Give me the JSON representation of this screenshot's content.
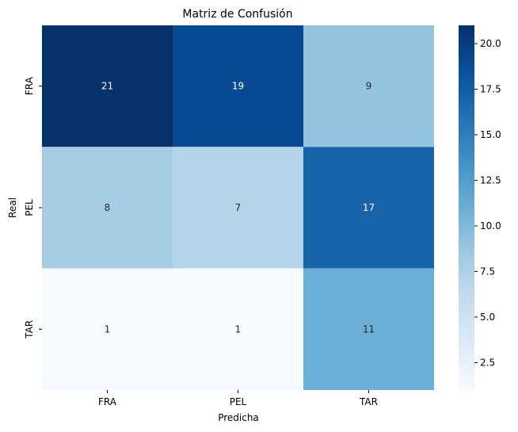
{
  "chart_data": {
    "type": "heatmap",
    "title": "Matriz de Confusión",
    "xlabel": "Predicha",
    "ylabel": "Real",
    "x_categories": [
      "FRA",
      "PEL",
      "TAR"
    ],
    "y_categories": [
      "FRA",
      "PEL",
      "TAR"
    ],
    "values": [
      [
        21,
        19,
        9
      ],
      [
        8,
        7,
        17
      ],
      [
        1,
        1,
        11
      ]
    ],
    "colormap": "Blues",
    "vmin": 1,
    "vmax": 21,
    "colorbar": {
      "ticks": [
        2.5,
        5.0,
        7.5,
        10.0,
        12.5,
        15.0,
        17.5,
        20.0
      ],
      "tick_labels": [
        "2.5",
        "5.0",
        "7.5",
        "10.0",
        "12.5",
        "15.0",
        "17.5",
        "20.0"
      ]
    },
    "grid": false
  }
}
